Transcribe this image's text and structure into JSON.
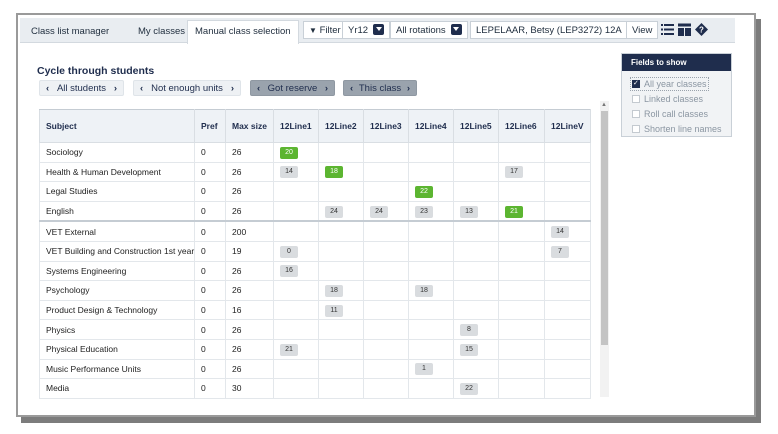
{
  "tabs": [
    {
      "label": "Class list manager"
    },
    {
      "label": "My classes"
    },
    {
      "label": "Manual class selection"
    }
  ],
  "toolbar": {
    "filter_label": "Filter",
    "year_value": "Yr12",
    "rotation_value": "All rotations",
    "student_value": "LEPELAAR, Betsy (LEP3272) 12A",
    "view_label": "View"
  },
  "cycle": {
    "title": "Cycle through students",
    "buttons": [
      {
        "label": "All students"
      },
      {
        "label": "Not enough units"
      },
      {
        "label": "Got reserve"
      },
      {
        "label": "This class"
      }
    ]
  },
  "table": {
    "headers": [
      "Subject",
      "Pref",
      "Max size",
      "12Line1",
      "12Line2",
      "12Line3",
      "12Line4",
      "12Line5",
      "12Line6",
      "12LineV"
    ],
    "rows": [
      {
        "subject": "Sociology",
        "pref": "0",
        "max": "26",
        "cells": [
          {
            "v": "20",
            "g": true
          },
          null,
          null,
          null,
          null,
          null,
          null
        ]
      },
      {
        "subject": "Health & Human Development",
        "pref": "0",
        "max": "26",
        "cells": [
          {
            "v": "14"
          },
          {
            "v": "18",
            "g": true
          },
          null,
          null,
          null,
          {
            "v": "17"
          },
          null
        ]
      },
      {
        "subject": "Legal Studies",
        "pref": "0",
        "max": "26",
        "cells": [
          null,
          null,
          null,
          {
            "v": "22",
            "g": true
          },
          null,
          null,
          null
        ]
      },
      {
        "subject": "English",
        "pref": "0",
        "max": "26",
        "cells": [
          null,
          {
            "v": "24"
          },
          {
            "v": "24"
          },
          {
            "v": "23"
          },
          {
            "v": "13"
          },
          {
            "v": "21",
            "g": true
          },
          null
        ]
      },
      {
        "subject": "VET External",
        "pref": "0",
        "max": "200",
        "sep": true,
        "cells": [
          null,
          null,
          null,
          null,
          null,
          null,
          {
            "v": "14"
          }
        ]
      },
      {
        "subject": "VET Building and Construction 1st year",
        "pref": "0",
        "max": "19",
        "cells": [
          {
            "v": "0"
          },
          null,
          null,
          null,
          null,
          null,
          {
            "v": "7"
          }
        ]
      },
      {
        "subject": "Systems Engineering",
        "pref": "0",
        "max": "26",
        "cells": [
          {
            "v": "16"
          },
          null,
          null,
          null,
          null,
          null,
          null
        ]
      },
      {
        "subject": "Psychology",
        "pref": "0",
        "max": "26",
        "cells": [
          null,
          {
            "v": "18"
          },
          null,
          {
            "v": "18"
          },
          null,
          null,
          null
        ]
      },
      {
        "subject": "Product Design & Technology",
        "pref": "0",
        "max": "16",
        "cells": [
          null,
          {
            "v": "11"
          },
          null,
          null,
          null,
          null,
          null
        ]
      },
      {
        "subject": "Physics",
        "pref": "0",
        "max": "26",
        "cells": [
          null,
          null,
          null,
          null,
          {
            "v": "8"
          },
          null,
          null
        ]
      },
      {
        "subject": "Physical Education",
        "pref": "0",
        "max": "26",
        "cells": [
          {
            "v": "21"
          },
          null,
          null,
          null,
          {
            "v": "15"
          },
          null,
          null
        ]
      },
      {
        "subject": "Music Performance Units",
        "pref": "0",
        "max": "26",
        "cells": [
          null,
          null,
          null,
          {
            "v": "1"
          },
          null,
          null,
          null
        ]
      },
      {
        "subject": "Media",
        "pref": "0",
        "max": "30",
        "cells": [
          null,
          null,
          null,
          null,
          {
            "v": "22"
          },
          null,
          null
        ]
      }
    ]
  },
  "fields_panel": {
    "title": "Fields to show",
    "options": [
      {
        "label": "All year classes",
        "checked": true
      },
      {
        "label": "Linked classes",
        "checked": false
      },
      {
        "label": "Roll call classes",
        "checked": false
      },
      {
        "label": "Shorten line names",
        "checked": false
      }
    ]
  },
  "colors": {
    "navy": "#1f2d4d",
    "green": "#5cb531",
    "chip": "#d9dcdf"
  },
  "icons": [
    "filter-icon",
    "list-view-icon",
    "grid-view-icon",
    "help-icon",
    "chevron-down-icon",
    "chevron-left-icon",
    "chevron-right-icon"
  ]
}
